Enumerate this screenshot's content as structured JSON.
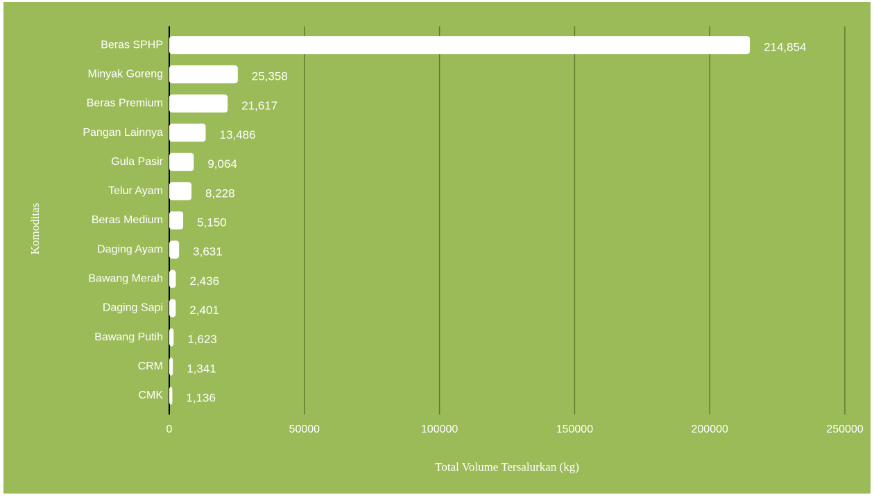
{
  "chart_data": {
    "type": "barh",
    "categories": [
      "Beras SPHP",
      "Minyak Goreng",
      "Beras Premium",
      "Pangan Lainnya",
      "Gula Pasir",
      "Telur Ayam",
      "Beras Medium",
      "Daging Ayam",
      "Bawang Merah",
      "Daging Sapi",
      "Bawang Putih",
      "CRM",
      "CMK"
    ],
    "values": [
      214854,
      25358,
      21617,
      13486,
      9064,
      8228,
      5150,
      3631,
      2436,
      2401,
      1623,
      1341,
      1136
    ],
    "value_labels": [
      "214,854",
      "25,358",
      "21,617",
      "13,486",
      "9,064",
      "8,228",
      "5,150",
      "3,631",
      "2,436",
      "2,401",
      "1,623",
      "1,341",
      "1,136"
    ],
    "color": "#ffffff",
    "xlim": [
      0,
      250000
    ],
    "xticks": [
      0,
      50000,
      100000,
      150000,
      200000,
      250000
    ],
    "grid": true,
    "xlabel": "Total Volume Tersalurkan (kg)",
    "ylabel": "Komoditas"
  }
}
